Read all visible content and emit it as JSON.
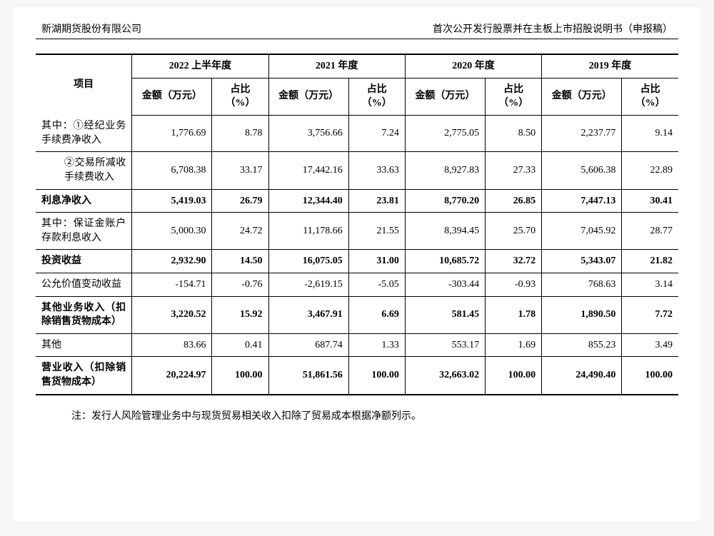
{
  "header": {
    "left": "新湖期货股份有限公司",
    "right": "首次公开发行股票并在主板上市招股说明书（申报稿）"
  },
  "table": {
    "item_header": "项目",
    "periods": [
      "2022 上半年度",
      "2021 年度",
      "2020 年度",
      "2019 年度"
    ],
    "sub_headers": {
      "amount": "金额（万元）",
      "pct": "占比（%）"
    },
    "rows": [
      {
        "label": "其中：①经纪业务手续费净收入",
        "indent": false,
        "bold": false,
        "vals": [
          "1,776.69",
          "8.78",
          "3,756.66",
          "7.24",
          "2,775.05",
          "8.50",
          "2,237.77",
          "9.14"
        ]
      },
      {
        "label": "②交易所减收手续费收入",
        "indent": true,
        "bold": false,
        "vals": [
          "6,708.38",
          "33.17",
          "17,442.16",
          "33.63",
          "8,927.83",
          "27.33",
          "5,606.38",
          "22.89"
        ]
      },
      {
        "label": "利息净收入",
        "indent": false,
        "bold": true,
        "vals": [
          "5,419.03",
          "26.79",
          "12,344.40",
          "23.81",
          "8,770.20",
          "26.85",
          "7,447.13",
          "30.41"
        ]
      },
      {
        "label": "其中：保证金账户存款利息收入",
        "indent": false,
        "bold": false,
        "vals": [
          "5,000.30",
          "24.72",
          "11,178.66",
          "21.55",
          "8,394.45",
          "25.70",
          "7,045.92",
          "28.77"
        ]
      },
      {
        "label": "投资收益",
        "indent": false,
        "bold": true,
        "vals": [
          "2,932.90",
          "14.50",
          "16,075.05",
          "31.00",
          "10,685.72",
          "32.72",
          "5,343.07",
          "21.82"
        ]
      },
      {
        "label": "公允价值变动收益",
        "indent": false,
        "bold": false,
        "vals": [
          "-154.71",
          "-0.76",
          "-2,619.15",
          "-5.05",
          "-303.44",
          "-0.93",
          "768.63",
          "3.14"
        ]
      },
      {
        "label": "其他业务收入（扣除销售货物成本）",
        "indent": false,
        "bold": true,
        "vals": [
          "3,220.52",
          "15.92",
          "3,467.91",
          "6.69",
          "581.45",
          "1.78",
          "1,890.50",
          "7.72"
        ]
      },
      {
        "label": "其他",
        "indent": false,
        "bold": false,
        "vals": [
          "83.66",
          "0.41",
          "687.74",
          "1.33",
          "553.17",
          "1.69",
          "855.23",
          "3.49"
        ]
      },
      {
        "label": "营业收入（扣除销售货物成本）",
        "indent": false,
        "bold": true,
        "vals": [
          "20,224.97",
          "100.00",
          "51,861.56",
          "100.00",
          "32,663.02",
          "100.00",
          "24,490.40",
          "100.00"
        ]
      }
    ]
  },
  "note": "注：发行人风险管理业务中与现货贸易相关收入扣除了贸易成本根据净额列示。"
}
